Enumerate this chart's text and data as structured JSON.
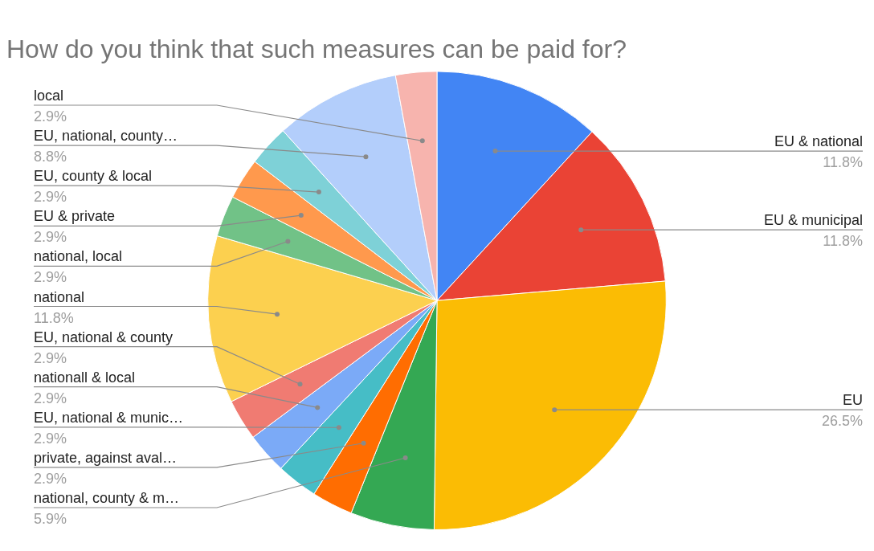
{
  "chart_data": {
    "type": "pie",
    "title": "How do you think that such measures can be paid for?",
    "categories": [
      "EU & national",
      "EU & municipal",
      "EU",
      "national, county & m…",
      "private, against aval…",
      "EU, national & munic…",
      "nationall & local",
      "EU, national & county",
      "national",
      "national, local",
      "EU & private",
      "EU, county & local",
      "EU, national, county…",
      "local"
    ],
    "values": [
      11.8,
      11.8,
      26.5,
      5.9,
      2.9,
      2.9,
      2.9,
      2.9,
      11.8,
      2.9,
      2.9,
      2.9,
      8.8,
      2.9
    ],
    "value_labels": [
      "11.8%",
      "11.8%",
      "26.5%",
      "5.9%",
      "2.9%",
      "2.9%",
      "2.9%",
      "2.9%",
      "11.8%",
      "2.9%",
      "2.9%",
      "2.9%",
      "8.8%",
      "2.9%"
    ],
    "colors": [
      "#4285f4",
      "#ea4335",
      "#fbbc04",
      "#34a853",
      "#ff6d01",
      "#46bdc6",
      "#7baaf7",
      "#f07b72",
      "#fcd04f",
      "#71c287",
      "#ff994d",
      "#7ed1d7",
      "#b3cefb",
      "#f7b4ae"
    ],
    "legend": false
  }
}
